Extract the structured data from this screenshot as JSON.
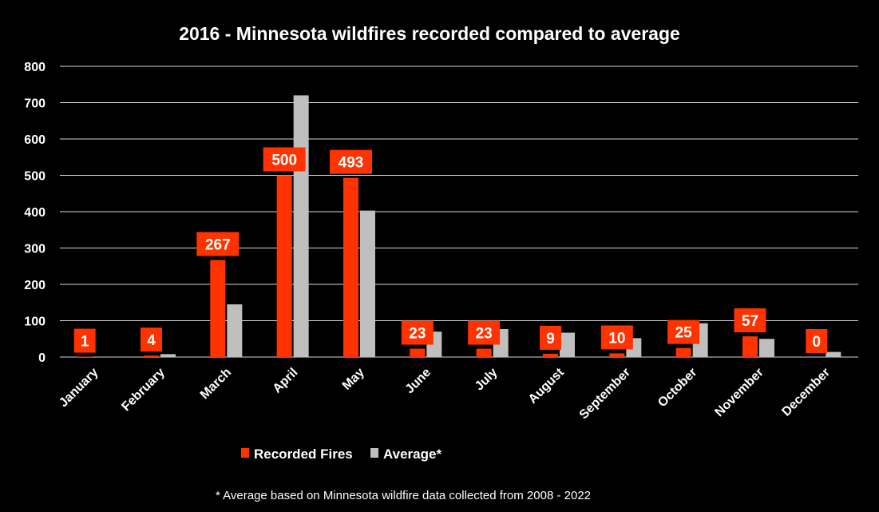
{
  "chart_data": {
    "type": "bar",
    "title": "2016 - Minnesota  wildfires recorded compared to average",
    "categories": [
      "January",
      "February",
      "March",
      "April",
      "May",
      "June",
      "July",
      "August",
      "September",
      "October",
      "November",
      "December"
    ],
    "series": [
      {
        "name": "Recorded Fires",
        "color": "#ff3300",
        "values": [
          1,
          4,
          267,
          500,
          493,
          23,
          23,
          9,
          10,
          25,
          57,
          0
        ],
        "data_labels": true
      },
      {
        "name": "Average*",
        "color": "#bfbfbf",
        "values": [
          0,
          8,
          145,
          720,
          403,
          70,
          77,
          67,
          52,
          93,
          50,
          14
        ],
        "data_labels": false
      }
    ],
    "ylim": [
      0,
      800
    ],
    "yticks": [
      "0",
      "100",
      "200",
      "300",
      "400",
      "500",
      "600",
      "700",
      "800"
    ],
    "grid": true,
    "legend_position": "bottom",
    "footnote": "* Average based on Minnesota wildfire data collected from 2008 - 2022"
  }
}
